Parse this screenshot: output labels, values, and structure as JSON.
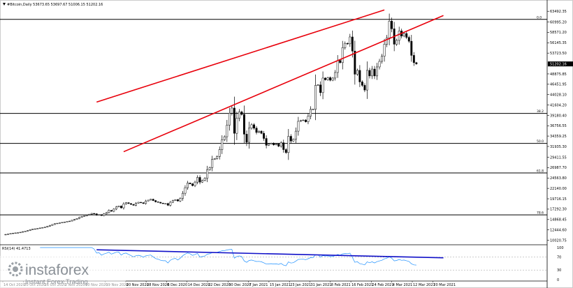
{
  "header": {
    "title": "#Bitcoin,Daily  53673.65 53697.67 51006.15 51202.16"
  },
  "rsi": {
    "label": "RSI(14) 41.4713",
    "scale": [
      "100",
      "70",
      "30",
      "0"
    ]
  },
  "watermark": {
    "brand": "instaforex",
    "tagline": "Instant Forex Trading"
  },
  "current_price_label": "51202.16",
  "chart_data": {
    "type": "candlestick",
    "y_ticks": [
      "63492.35",
      "60995.20",
      "58571.20",
      "56145.35",
      "53723.50",
      "48875.85",
      "46451.95",
      "44028.10",
      "41604.20",
      "39180.40",
      "36756.55",
      "34359.25",
      "31935.30",
      "29411.55",
      "26987.70",
      "24563.80",
      "22140.00",
      "19716.15",
      "17292.30",
      "14868.45",
      "12444.60",
      "10020.75"
    ],
    "fib_levels": [
      {
        "label": "0.0",
        "price": 61600
      },
      {
        "label": "38.2",
        "price": 39650
      },
      {
        "label": "50.0",
        "price": 32650
      },
      {
        "label": "61.8",
        "price": 25750
      },
      {
        "label": "78.6",
        "price": 15950
      }
    ],
    "x_ticks": [
      "14 Oct 2020",
      "20 Oct 2020",
      "26 Oct 2020",
      "2 Nov 2020",
      "10 Nov 2020",
      "19 Nov 2020",
      "20 Nov 2020",
      "28 Nov 2020",
      "6 Dec 2020",
      "14 Dec 2020",
      "22 Dec 2020",
      "30 Dec 2020",
      "7 Jan 2021",
      "15 Jan 2021",
      "23 Jan 2021",
      "31 Jan 2021",
      "8 Feb 2021",
      "16 Feb 2021",
      "24 Feb 2021",
      "4 Mar 2021",
      "12 Mar 2021",
      "20 Mar 2021"
    ],
    "series": [
      {
        "values": [
          11400,
          11500,
          11600,
          11700,
          11750,
          11800,
          11900,
          12050,
          12150,
          12300,
          12500,
          12650,
          12700,
          12800,
          12900,
          13000,
          13100,
          13300,
          13500,
          13700,
          13900,
          14000,
          14100,
          14200,
          14300,
          14400,
          14500,
          14700,
          14900,
          15100,
          15400,
          15600,
          15700,
          15900,
          16100,
          16300,
          16200,
          15900,
          16000,
          15800,
          16200,
          16500,
          17000,
          16800,
          17300,
          17800,
          18000,
          17600,
          18500,
          18800,
          18600,
          18400,
          18200,
          18700,
          18900,
          18800,
          18600,
          19200,
          19400,
          19600,
          19300,
          19000,
          18900,
          18700,
          18600,
          18600,
          18200,
          18900,
          19300,
          19500,
          19200,
          19800,
          21000,
          22300,
          23400,
          23200,
          22800,
          23600,
          24700,
          23600,
          24000,
          24500,
          26500,
          27000,
          28900,
          29100,
          29600,
          31200,
          33500,
          34200,
          36900,
          39700,
          40900,
          35000,
          38500,
          40000,
          39400,
          34800,
          32900,
          36200,
          37000,
          36200,
          35200,
          35500,
          35000,
          33800,
          32200,
          32500,
          32700,
          32300,
          32500,
          32000,
          32800,
          31200,
          30500,
          34300,
          33200,
          33600,
          35500,
          37800,
          38000,
          38100,
          37700,
          39000,
          40600,
          40600,
          46200,
          46300,
          44500,
          47900,
          47500,
          48000,
          47400,
          47900,
          49200,
          52000,
          51500,
          55000,
          56000,
          55900,
          57500,
          54200,
          48800,
          49700,
          47000,
          46200,
          45100,
          49700,
          48400,
          50000,
          48400,
          50500,
          51800,
          53000,
          55800,
          57300,
          61200,
          59400,
          55800,
          56700,
          58900,
          57700,
          58300,
          57400,
          56500,
          53200,
          51500,
          51202
        ]
      }
    ],
    "trendlines": [
      {
        "from": [
          37,
          42300
        ],
        "to": [
          154,
          63800
        ]
      },
      {
        "from": [
          48,
          30700
        ],
        "to": [
          178,
          62500
        ]
      }
    ],
    "rsi": {
      "levels": [
        70,
        30
      ],
      "trendline": {
        "from": [
          37,
          93
        ],
        "to": [
          178,
          68
        ]
      }
    }
  }
}
